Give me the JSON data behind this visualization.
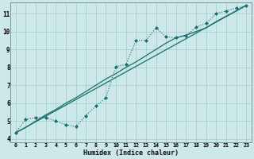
{
  "xlabel": "Humidex (Indice chaleur)",
  "bg_color": "#cce8e8",
  "grid_color": "#aacece",
  "line_color": "#1a6e6e",
  "xlim": [
    -0.5,
    23.5
  ],
  "ylim": [
    3.8,
    11.6
  ],
  "xticks": [
    0,
    1,
    2,
    3,
    4,
    5,
    6,
    7,
    8,
    9,
    10,
    11,
    12,
    13,
    14,
    15,
    16,
    17,
    18,
    19,
    20,
    21,
    22,
    23
  ],
  "yticks": [
    4,
    5,
    6,
    7,
    8,
    9,
    10,
    11
  ],
  "line1_x": [
    0,
    1,
    2,
    3,
    4,
    5,
    6,
    7,
    8,
    9,
    10,
    11,
    12,
    13,
    14,
    15,
    16,
    17,
    18,
    19,
    20,
    21,
    22,
    23
  ],
  "line1_y": [
    4.35,
    5.1,
    5.2,
    5.2,
    5.0,
    4.8,
    4.7,
    5.3,
    5.85,
    6.3,
    8.05,
    8.15,
    9.5,
    9.5,
    10.2,
    9.7,
    9.65,
    9.75,
    10.25,
    10.45,
    11.0,
    11.15,
    11.3,
    11.45
  ],
  "line2_x": [
    0,
    23
  ],
  "line2_y": [
    4.35,
    11.45
  ],
  "line3_x": [
    0,
    1,
    2,
    3,
    4,
    5,
    6,
    7,
    8,
    9,
    10,
    11,
    12,
    13,
    14,
    15,
    16,
    17,
    18,
    19,
    20,
    21,
    22,
    23
  ],
  "line3_y": [
    4.35,
    4.65,
    5.0,
    5.35,
    5.65,
    6.0,
    6.3,
    6.65,
    7.0,
    7.35,
    7.65,
    8.0,
    8.3,
    8.65,
    9.0,
    9.35,
    9.65,
    9.8,
    10.0,
    10.2,
    10.55,
    10.85,
    11.15,
    11.45
  ]
}
